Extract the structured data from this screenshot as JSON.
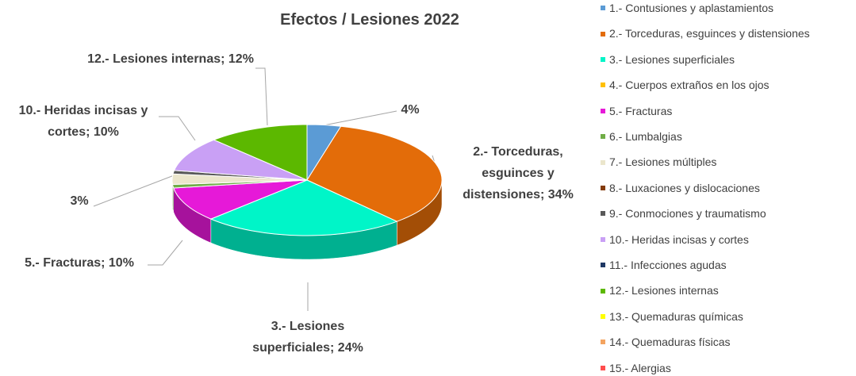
{
  "chart_data": {
    "type": "pie3d",
    "title": "Efectos / Lesiones 2022",
    "categories": [
      "1.- Contusiones y aplastamientos",
      "2.- Torceduras, esguinces y distensiones",
      "3.- Lesiones superficiales",
      "4.- Cuerpos extraños en los ojos",
      "5.- Fracturas",
      "6.- Lumbalgias",
      "7.- Lesiones múltiples",
      "8.- Luxaciones y dislocaciones",
      "9.- Conmociones y traumatismo",
      "10.- Heridas incisas y cortes",
      "11.- Infecciones agudas",
      "12.- Lesiones internas",
      "13.- Quemaduras químicas",
      "14.- Quemaduras físicas",
      "15.- Alergias"
    ],
    "values": [
      4,
      34,
      24,
      0,
      10,
      1,
      3,
      0,
      1,
      10,
      0,
      12,
      0,
      0,
      0
    ],
    "value_labels": [
      "4%",
      "2.- Torceduras, esguinces y distensiones; 34%",
      "3.- Lesiones superficiales; 24%",
      null,
      "5.- Fracturas; 10%",
      null,
      "3%",
      null,
      null,
      "10.- Heridas incisas y cortes; 10%",
      null,
      "12.- Lesiones internas; 12%",
      null,
      null,
      null
    ],
    "colors": [
      "#5b9bd5",
      "#e36c09",
      "#00f5c8",
      "#ffc000",
      "#e619d8",
      "#70ad47",
      "#ebe6cc",
      "#843c0c",
      "#595959",
      "#c9a0f5",
      "#1f3864",
      "#5cb800",
      "#ffff00",
      "#f4a460",
      "#ff4d4d"
    ],
    "legend": "right"
  }
}
